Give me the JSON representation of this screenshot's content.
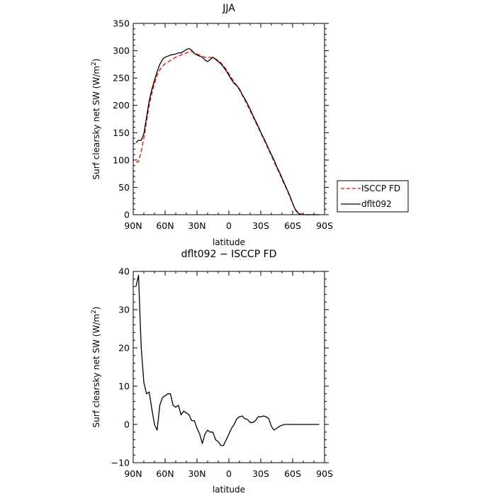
{
  "chart_data": [
    {
      "type": "line",
      "title": "JJA",
      "xlabel": "latitude",
      "ylabel": "Surf clearsky net SW (W/m",
      "ylabel_sup": "2",
      "ylabel_tail": ")",
      "xlim": [
        90,
        -90
      ],
      "ylim": [
        0,
        350
      ],
      "x_ticks": [
        90,
        60,
        30,
        0,
        -30,
        -60,
        -90
      ],
      "x_tick_labels": [
        "90N",
        "60N",
        "30N",
        "0",
        "30S",
        "60S",
        "90S"
      ],
      "y_ticks": [
        0,
        50,
        100,
        150,
        200,
        250,
        300,
        350
      ],
      "y_tick_labels": [
        "0",
        "50",
        "100",
        "150",
        "200",
        "250",
        "300",
        "350"
      ],
      "legend": "right",
      "series": [
        {
          "name": "ISCCP FD",
          "color": "#ff0000",
          "dash": "dashed",
          "x": [
            87.5,
            85,
            82.5,
            80,
            77.5,
            75,
            72.5,
            70,
            67.5,
            65,
            62.5,
            60,
            57.5,
            55,
            52.5,
            50,
            47.5,
            45,
            42.5,
            40,
            37.5,
            35,
            32.5,
            30,
            27.5,
            25,
            22.5,
            20,
            17.5,
            15,
            12.5,
            10,
            7.5,
            5,
            2.5,
            0,
            -2.5,
            -5,
            -7.5,
            -10,
            -12.5,
            -15,
            -17.5,
            -20,
            -22.5,
            -25,
            -27.5,
            -30,
            -32.5,
            -35,
            -37.5,
            -40,
            -42.5,
            -45,
            -47.5,
            -50,
            -52.5,
            -55,
            -57.5,
            -60,
            -62.5,
            -65,
            -67.5,
            -70,
            -72.5,
            -75,
            -77.5,
            -80,
            -82.5,
            -85
          ],
          "y": [
            96,
            97,
            115,
            140,
            170,
            200,
            222,
            240,
            255,
            265,
            272,
            276,
            279,
            282,
            285,
            288,
            290,
            292,
            294,
            296,
            298,
            299,
            296,
            294,
            292,
            290,
            288,
            287,
            288,
            287,
            285,
            282,
            278,
            272,
            266,
            258,
            250,
            243,
            236,
            228,
            219,
            210,
            200,
            190,
            180,
            170,
            160,
            150,
            139,
            129,
            118,
            108,
            97,
            86,
            76,
            65,
            54,
            44,
            32,
            20,
            10,
            4,
            1.5,
            0.5,
            0,
            0,
            0,
            0,
            0,
            0
          ]
        },
        {
          "name": "dflt092",
          "color": "#000000",
          "dash": "solid",
          "x": [
            87.5,
            85,
            82.5,
            80,
            77.5,
            75,
            72.5,
            70,
            67.5,
            65,
            62.5,
            60,
            57.5,
            55,
            52.5,
            50,
            47.5,
            45,
            42.5,
            40,
            37.5,
            35,
            32.5,
            30,
            27.5,
            25,
            22.5,
            20,
            17.5,
            15,
            12.5,
            10,
            7.5,
            5,
            2.5,
            0,
            -2.5,
            -5,
            -7.5,
            -10,
            -12.5,
            -15,
            -17.5,
            -20,
            -22.5,
            -25,
            -27.5,
            -30,
            -32.5,
            -35,
            -37.5,
            -40,
            -42.5,
            -45,
            -47.5,
            -50,
            -52.5,
            -55,
            -57.5,
            -60,
            -62.5,
            -65,
            -67.5,
            -70,
            -72.5,
            -75,
            -77.5,
            -80,
            -82.5,
            -85
          ],
          "y": [
            132,
            136,
            136,
            148,
            178,
            208,
            229,
            246,
            262,
            275,
            284,
            288,
            290,
            292,
            293,
            294,
            296,
            296,
            299,
            302,
            304,
            301,
            295,
            292,
            290,
            288,
            283,
            280,
            284,
            288,
            284,
            280,
            276,
            270,
            263,
            255,
            247,
            240,
            236,
            230,
            220,
            212,
            203,
            193,
            182,
            172,
            162,
            151,
            141,
            131,
            120,
            110,
            100,
            88,
            78,
            67,
            56,
            45,
            34,
            21,
            9,
            3,
            0.5,
            0,
            0,
            0,
            0,
            0,
            0,
            0
          ]
        }
      ]
    },
    {
      "type": "line",
      "title": "dflt092 − ISCCP FD",
      "xlabel": "latitude",
      "ylabel": "Surf clearsky net SW (W/m",
      "ylabel_sup": "2",
      "ylabel_tail": ")",
      "xlim": [
        90,
        -90
      ],
      "ylim": [
        -10,
        40
      ],
      "x_ticks": [
        90,
        60,
        30,
        0,
        -30,
        -60,
        -90
      ],
      "x_tick_labels": [
        "90N",
        "60N",
        "30N",
        "0",
        "30S",
        "60S",
        "90S"
      ],
      "y_ticks": [
        -10,
        0,
        10,
        20,
        30,
        40
      ],
      "y_tick_labels": [
        "−10",
        "0",
        "10",
        "20",
        "30",
        "40"
      ],
      "series": [
        {
          "color": "#000000",
          "dash": "solid",
          "x": [
            87.5,
            85,
            82.5,
            80,
            77.5,
            75,
            72.5,
            70,
            67.5,
            65,
            62.5,
            60,
            57.5,
            55,
            52.5,
            50,
            47.5,
            45,
            42.5,
            40,
            37.5,
            35,
            32.5,
            30,
            27.5,
            25,
            22.5,
            20,
            17.5,
            15,
            12.5,
            10,
            7.5,
            5,
            2.5,
            0,
            -2.5,
            -5,
            -7.5,
            -10,
            -12.5,
            -15,
            -17.5,
            -20,
            -22.5,
            -25,
            -27.5,
            -30,
            -32.5,
            -35,
            -37.5,
            -40,
            -42.5,
            -45,
            -47.5,
            -50,
            -52.5,
            -55,
            -57.5,
            -60,
            -62.5,
            -65,
            -67.5,
            -70,
            -72.5,
            -75,
            -77.5,
            -80,
            -82.5,
            -85
          ],
          "y": [
            36,
            39,
            20,
            11,
            8,
            8.5,
            4,
            0,
            -1.5,
            5,
            7,
            7.5,
            8,
            8,
            5,
            4.5,
            5,
            2.5,
            3.5,
            3,
            2.5,
            1,
            1,
            -1,
            -2.5,
            -5,
            -2.5,
            -1.5,
            -2,
            -2,
            -4,
            -4.5,
            -5.5,
            -5.5,
            -4,
            -2.5,
            -1,
            0,
            1.5,
            2,
            2.2,
            1.5,
            1.3,
            0.5,
            0.5,
            1,
            2,
            2,
            2.2,
            2,
            1.5,
            -0.5,
            -1.5,
            -1,
            -0.5,
            -0.2,
            0,
            0,
            0,
            0,
            0,
            0,
            0,
            0,
            0,
            0,
            0,
            0,
            0,
            0
          ]
        }
      ]
    }
  ]
}
